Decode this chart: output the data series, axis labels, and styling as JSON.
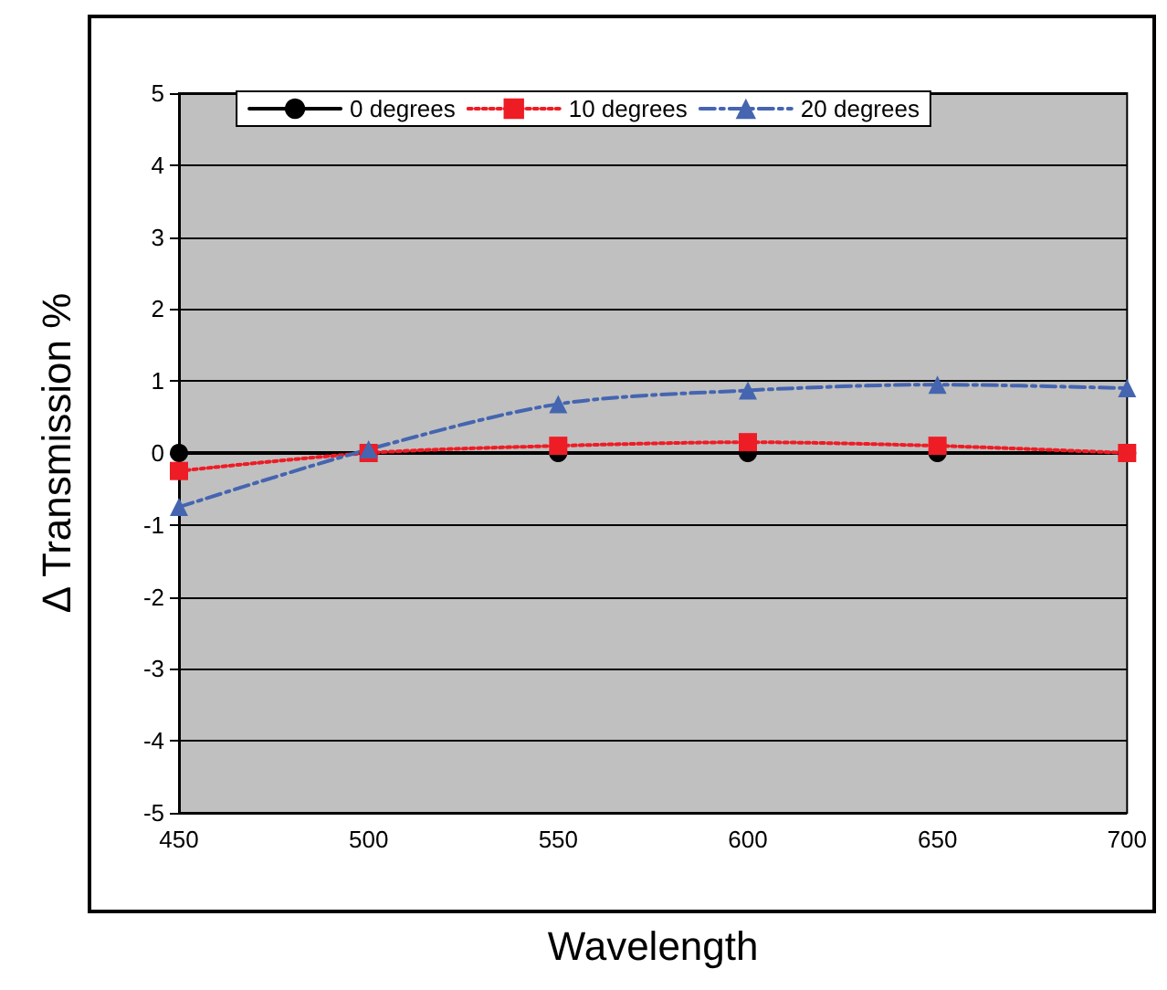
{
  "chart_data": {
    "type": "line",
    "xlabel": "Wavelength",
    "ylabel": "Δ Transmission %",
    "x": [
      450,
      500,
      550,
      600,
      650,
      700
    ],
    "series": [
      {
        "name": "0 degrees",
        "color": "#000000",
        "marker": "circle",
        "line_style": "solid",
        "values": [
          0,
          0,
          0,
          0,
          0,
          0
        ]
      },
      {
        "name": "10 degrees",
        "color": "#ee1c25",
        "marker": "square",
        "line_style": "dotted",
        "values": [
          -0.25,
          0,
          0.1,
          0.15,
          0.1,
          0
        ]
      },
      {
        "name": "20 degrees",
        "color": "#4565b0",
        "marker": "triangle",
        "line_style": "dashed",
        "values": [
          -0.75,
          0.05,
          0.68,
          0.87,
          0.95,
          0.9
        ]
      }
    ],
    "xlim": [
      450,
      700
    ],
    "xticks": [
      450,
      500,
      550,
      600,
      650,
      700
    ],
    "ylim": [
      -5,
      5
    ],
    "yticks": [
      -5,
      -4,
      -3,
      -2,
      -1,
      0,
      1,
      2,
      3,
      4,
      5
    ],
    "grid": "y",
    "legend": "top"
  }
}
